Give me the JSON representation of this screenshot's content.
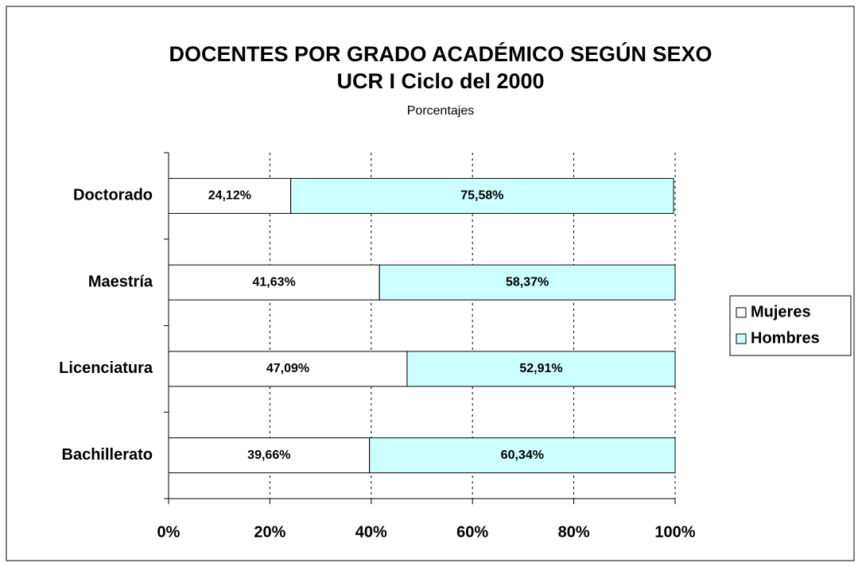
{
  "chart_data": {
    "type": "stacked_bar_horizontal",
    "title": [
      "DOCENTES POR GRADO ACADÉMICO SEGÚN SEXO",
      "UCR I Ciclo del 2000"
    ],
    "subtitle": "Porcentajes",
    "categories": [
      "Doctorado",
      "Maestría",
      "Licenciatura",
      "Bachillerato"
    ],
    "series": [
      {
        "name": "Mujeres",
        "color": "#ffffff",
        "values": [
          24.12,
          41.63,
          47.09,
          39.66
        ],
        "value_labels": [
          "24,12%",
          "41,63%",
          "47,09%",
          "39,66%"
        ]
      },
      {
        "name": "Hombres",
        "color": "#ccffff",
        "values": [
          75.58,
          58.37,
          52.91,
          60.34
        ],
        "value_labels": [
          "75,58%",
          "58,37%",
          "52,91%",
          "60,34%"
        ]
      }
    ],
    "xlim": [
      0,
      100
    ],
    "xticks": [
      {
        "value": 0,
        "label": "0%"
      },
      {
        "value": 20,
        "label": "20%"
      },
      {
        "value": 40,
        "label": "40%"
      },
      {
        "value": 60,
        "label": "60%"
      },
      {
        "value": 80,
        "label": "80%"
      },
      {
        "value": 100,
        "label": "100%"
      }
    ],
    "grid": true,
    "legend": "right"
  }
}
